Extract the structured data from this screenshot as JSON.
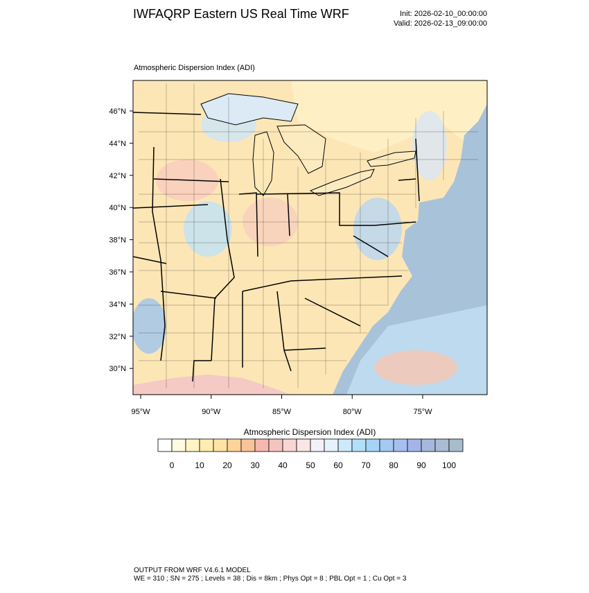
{
  "header": {
    "title": "IWFAQRP Eastern US Real Time WRF",
    "init": "Init: 2026-02-10_00:00:00",
    "valid": "Valid: 2026-02-13_09:00:00"
  },
  "map": {
    "subtitle": "Atmospheric Dispersion Index   (ADI)",
    "lat_labels": [
      "46°N",
      "44°N",
      "42°N",
      "40°N",
      "38°N",
      "36°N",
      "34°N",
      "32°N",
      "30°N"
    ],
    "lon_labels": [
      "95°W",
      "90°W",
      "85°W",
      "80°W",
      "75°W"
    ]
  },
  "colorbar": {
    "title": "Atmospheric Dispersion Index  (ADI)",
    "labels": [
      0,
      10,
      20,
      30,
      40,
      50,
      60,
      70,
      80,
      90,
      100
    ],
    "colors": [
      "#ffffff",
      "#fffbe0",
      "#fff4c4",
      "#ffecb0",
      "#fee3a5",
      "#fdd39a",
      "#f9c49a",
      "#f6b8ae",
      "#f5c4c0",
      "#f8d6d4",
      "#fae6e4",
      "#f4f0f8",
      "#e6f2fc",
      "#cdeafb",
      "#b2e0fa",
      "#a6d4f7",
      "#a4c9f2",
      "#a6bfee",
      "#a3b5e8",
      "#a8b8dc",
      "#a9bcd2",
      "#a7bccd"
    ]
  },
  "footer": {
    "line1": "OUTPUT FROM WRF V4.6.1 MODEL",
    "line2": "WE = 310 ; SN = 275 ; Levels = 38 ; Dis = 8km ; Phys Opt = 8 ; PBL Opt = 1 ; Cu Opt = 3"
  }
}
